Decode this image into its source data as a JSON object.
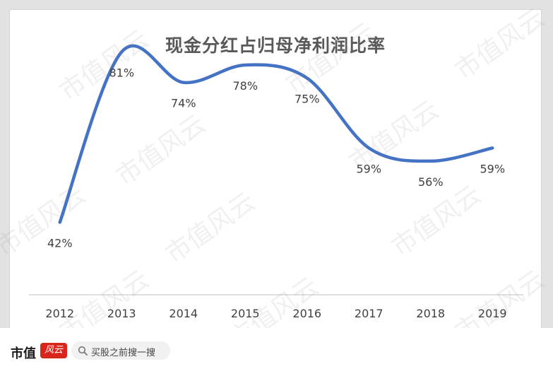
{
  "chart_data": {
    "type": "line",
    "title": "现金分红占归母净利润比率",
    "categories": [
      "2012",
      "2013",
      "2014",
      "2015",
      "2016",
      "2017",
      "2018",
      "2019"
    ],
    "series": [
      {
        "values": [
          42,
          81,
          74,
          78,
          75,
          59,
          56,
          59
        ],
        "labels": [
          "42%",
          "81%",
          "74%",
          "78%",
          "75%",
          "59%",
          "56%",
          "59%"
        ],
        "color": "#4472c4"
      }
    ],
    "ylim": [
      0,
      100
    ],
    "grid": false,
    "smooth": true
  },
  "footer": {
    "brand": "市值",
    "seal": "风云",
    "search_placeholder": "买股之前搜一搜",
    "search_icon": "search-icon"
  },
  "watermark_text": "市值风云"
}
